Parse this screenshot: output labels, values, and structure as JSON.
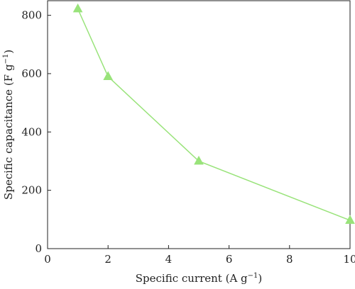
{
  "chart_data": {
    "type": "line",
    "xlabel": "Specific current (A g",
    "xlabel_sup": "−1",
    "xlabel_tail": ")",
    "ylabel": "Specific capacitance (F g",
    "ylabel_sup": "−1",
    "ylabel_tail": ")",
    "xlim": [
      0,
      10
    ],
    "ylim": [
      0,
      850
    ],
    "xticks": [
      0,
      2,
      4,
      6,
      8,
      10
    ],
    "yticks": [
      0,
      200,
      400,
      600,
      800
    ],
    "grid": false,
    "series": [
      {
        "color": "#99e37a",
        "marker": "triangle",
        "x": [
          1,
          2,
          5,
          10
        ],
        "y": [
          822,
          590,
          300,
          97
        ]
      }
    ]
  }
}
